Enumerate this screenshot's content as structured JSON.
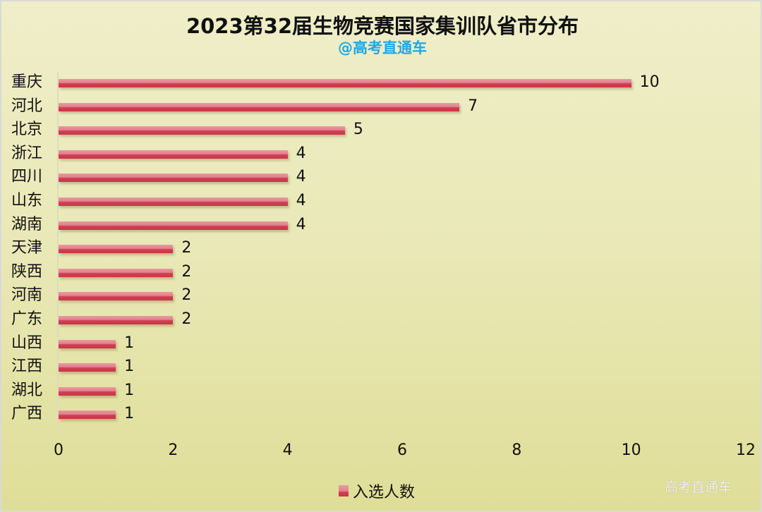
{
  "chart_data": {
    "type": "bar",
    "orientation": "horizontal",
    "title": "2023第32届生物竞赛国家集训队省市分布",
    "subtitle": "@高考直通车",
    "categories": [
      "重庆",
      "河北",
      "北京",
      "浙江",
      "四川",
      "山东",
      "湖南",
      "天津",
      "陕西",
      "河南",
      "广东",
      "山西",
      "江西",
      "湖北",
      "广西"
    ],
    "series": [
      {
        "name": "入选人数",
        "values": [
          10,
          7,
          5,
          4,
          4,
          4,
          4,
          2,
          2,
          2,
          2,
          1,
          1,
          1,
          1
        ]
      }
    ],
    "xlabel": "",
    "ylabel": "",
    "xlim": [
      0,
      12
    ],
    "x_ticks": [
      "0",
      "2",
      "4",
      "6",
      "8",
      "10",
      "12"
    ],
    "grid": false,
    "legend_position": "bottom",
    "data_labels": true
  },
  "header": {
    "title": "2023第32届生物竞赛国家集训队省市分布",
    "subtitle": "@高考直通车"
  },
  "legend": {
    "label": "入选人数"
  },
  "watermark": "高考直通车",
  "colors": {
    "bar_light": "#e37e8b",
    "bar_dark": "#c8374a",
    "subtitle": "#1ea8e8",
    "background_top": "#efeec9",
    "background_bottom": "#dfde98"
  }
}
